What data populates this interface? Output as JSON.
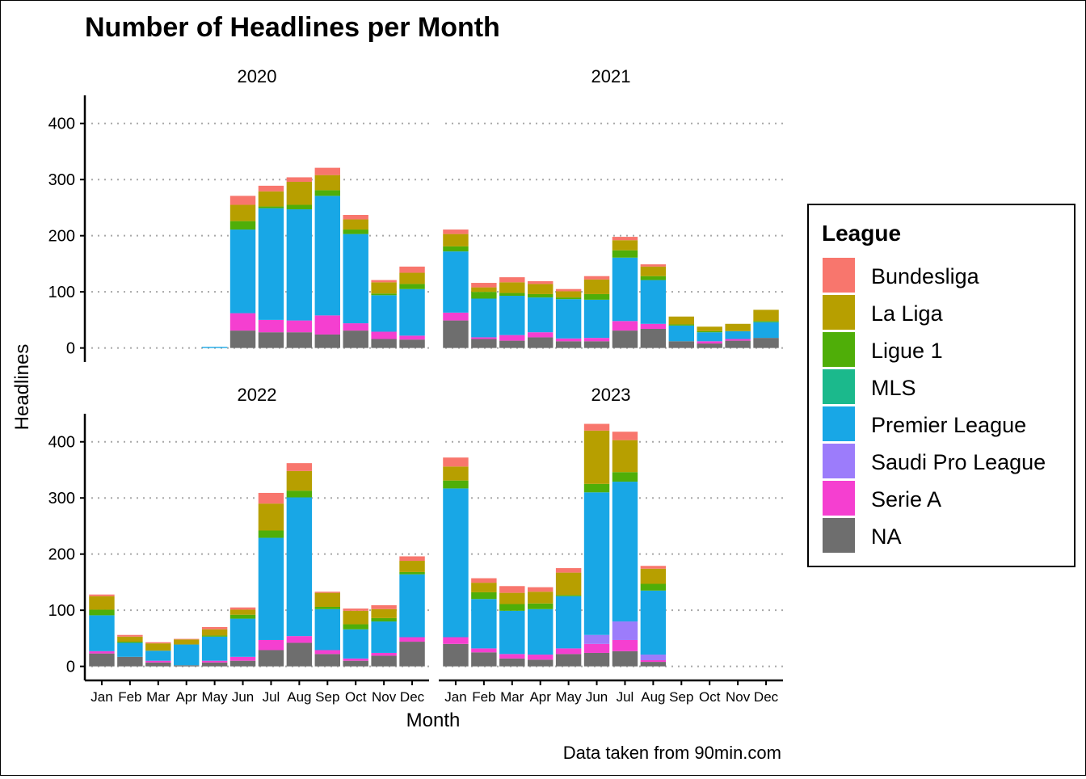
{
  "chart_data": {
    "type": "bar",
    "stacked": true,
    "title": "Number of Headlines per Month",
    "xlabel": "Month",
    "ylabel": "Headlines",
    "caption": "Data taken from 90min.com",
    "ylim": [
      -25,
      450
    ],
    "y_ticks": [
      "0",
      "100",
      "200",
      "300",
      "400"
    ],
    "categories": [
      "Jan",
      "Feb",
      "Mar",
      "Apr",
      "May",
      "Jun",
      "Jul",
      "Aug",
      "Sep",
      "Oct",
      "Nov",
      "Dec"
    ],
    "grid": "horizontal dotted",
    "legend": {
      "title": "League",
      "placement": "right",
      "entries": [
        {
          "name": "Bundesliga",
          "color": "#F8766D"
        },
        {
          "name": "La Liga",
          "color": "#B79F00"
        },
        {
          "name": "Ligue 1",
          "color": "#4FAE08"
        },
        {
          "name": "MLS",
          "color": "#1BB98C"
        },
        {
          "name": "Premier League",
          "color": "#18A7E6"
        },
        {
          "name": "Saudi Pro League",
          "color": "#9C7CFB"
        },
        {
          "name": "Serie A",
          "color": "#F53FD0"
        },
        {
          "name": "NA",
          "color": "#6E6E6E"
        }
      ]
    },
    "stack_order_bottom_to_top": [
      "NA",
      "Serie A",
      "Saudi Pro League",
      "Premier League",
      "MLS",
      "Ligue 1",
      "La Liga",
      "Bundesliga"
    ],
    "facets": [
      {
        "label": "2020",
        "series": [
          {
            "name": "NA",
            "values": [
              0,
              0,
              0,
              0,
              0,
              31,
              28,
              28,
              24,
              31,
              16,
              15
            ]
          },
          {
            "name": "Serie A",
            "values": [
              0,
              0,
              0,
              0,
              0,
              31,
              22,
              21,
              34,
              13,
              13,
              7
            ]
          },
          {
            "name": "Saudi Pro League",
            "values": [
              0,
              0,
              0,
              0,
              0,
              0,
              0,
              0,
              0,
              0,
              0,
              0
            ]
          },
          {
            "name": "Premier League",
            "values": [
              0,
              0,
              0,
              0,
              2,
              149,
              199,
              198,
              213,
              159,
              65,
              83
            ]
          },
          {
            "name": "MLS",
            "values": [
              0,
              0,
              0,
              0,
              0,
              0,
              0,
              0,
              0,
              0,
              0,
              0
            ]
          },
          {
            "name": "Ligue 1",
            "values": [
              0,
              0,
              0,
              0,
              0,
              15,
              3,
              8,
              10,
              8,
              3,
              9
            ]
          },
          {
            "name": "La Liga",
            "values": [
              0,
              0,
              0,
              0,
              0,
              29,
              27,
              41,
              27,
              18,
              20,
              20
            ]
          },
          {
            "name": "Bundesliga",
            "values": [
              0,
              0,
              0,
              0,
              0,
              16,
              10,
              8,
              13,
              8,
              4,
              11
            ]
          }
        ]
      },
      {
        "label": "2021",
        "series": [
          {
            "name": "NA",
            "values": [
              49,
              16,
              13,
              19,
              12,
              12,
              31,
              34,
              12,
              8,
              13,
              18
            ]
          },
          {
            "name": "Serie A",
            "values": [
              14,
              3,
              10,
              9,
              5,
              6,
              17,
              9,
              0,
              4,
              3,
              0
            ]
          },
          {
            "name": "Saudi Pro League",
            "values": [
              0,
              0,
              0,
              0,
              0,
              0,
              0,
              0,
              0,
              0,
              0,
              0
            ]
          },
          {
            "name": "Premier League",
            "values": [
              109,
              69,
              70,
              62,
              70,
              68,
              113,
              78,
              28,
              16,
              14,
              28
            ]
          },
          {
            "name": "MLS",
            "values": [
              0,
              0,
              0,
              0,
              0,
              0,
              0,
              0,
              0,
              0,
              0,
              0
            ]
          },
          {
            "name": "Ligue 1",
            "values": [
              9,
              12,
              5,
              6,
              3,
              10,
              13,
              7,
              2,
              2,
              0,
              2
            ]
          },
          {
            "name": "La Liga",
            "values": [
              22,
              8,
              19,
              18,
              11,
              26,
              18,
              17,
              14,
              8,
              13,
              20
            ]
          },
          {
            "name": "Bundesliga",
            "values": [
              8,
              8,
              9,
              5,
              4,
              6,
              6,
              4,
              0,
              0,
              0,
              0
            ]
          }
        ]
      },
      {
        "label": "2022",
        "series": [
          {
            "name": "NA",
            "values": [
              23,
              17,
              7,
              2,
              7,
              10,
              29,
              42,
              22,
              10,
              19,
              44
            ]
          },
          {
            "name": "Serie A",
            "values": [
              4,
              0,
              3,
              0,
              3,
              7,
              18,
              12,
              7,
              4,
              5,
              8
            ]
          },
          {
            "name": "Saudi Pro League",
            "values": [
              0,
              0,
              0,
              0,
              0,
              0,
              0,
              0,
              0,
              0,
              0,
              0
            ]
          },
          {
            "name": "Premier League",
            "values": [
              64,
              25,
              18,
              37,
              43,
              68,
              182,
              247,
              73,
              52,
              56,
              112
            ]
          },
          {
            "name": "MLS",
            "values": [
              0,
              0,
              0,
              0,
              0,
              0,
              0,
              0,
              0,
              0,
              0,
              0
            ]
          },
          {
            "name": "Ligue 1",
            "values": [
              10,
              2,
              0,
              0,
              2,
              7,
              13,
              12,
              4,
              9,
              6,
              4
            ]
          },
          {
            "name": "La Liga",
            "values": [
              24,
              9,
              13,
              9,
              11,
              9,
              48,
              35,
              25,
              24,
              16,
              20
            ]
          },
          {
            "name": "Bundesliga",
            "values": [
              3,
              3,
              2,
              1,
              4,
              4,
              19,
              14,
              2,
              4,
              7,
              8
            ]
          }
        ]
      },
      {
        "label": "2023",
        "series": [
          {
            "name": "NA",
            "values": [
              40,
              25,
              14,
              12,
              22,
              24,
              27,
              8,
              0,
              0,
              0,
              0
            ]
          },
          {
            "name": "Serie A",
            "values": [
              12,
              7,
              8,
              9,
              10,
              16,
              20,
              3,
              0,
              0,
              0,
              0
            ]
          },
          {
            "name": "Saudi Pro League",
            "values": [
              0,
              0,
              0,
              0,
              0,
              16,
              33,
              10,
              0,
              0,
              0,
              0
            ]
          },
          {
            "name": "Premier League",
            "values": [
              265,
              88,
              77,
              81,
              93,
              254,
              249,
              114,
              0,
              0,
              0,
              0
            ]
          },
          {
            "name": "MLS",
            "values": [
              0,
              0,
              0,
              0,
              0,
              0,
              0,
              0,
              0,
              0,
              0,
              0
            ]
          },
          {
            "name": "Ligue 1",
            "values": [
              14,
              12,
              12,
              10,
              2,
              15,
              17,
              12,
              0,
              0,
              0,
              0
            ]
          },
          {
            "name": "La Liga",
            "values": [
              25,
              17,
              20,
              21,
              40,
              95,
              57,
              27,
              0,
              0,
              0,
              0
            ]
          },
          {
            "name": "Bundesliga",
            "values": [
              16,
              8,
              12,
              8,
              8,
              12,
              15,
              5,
              0,
              0,
              0,
              0
            ]
          }
        ]
      }
    ]
  }
}
